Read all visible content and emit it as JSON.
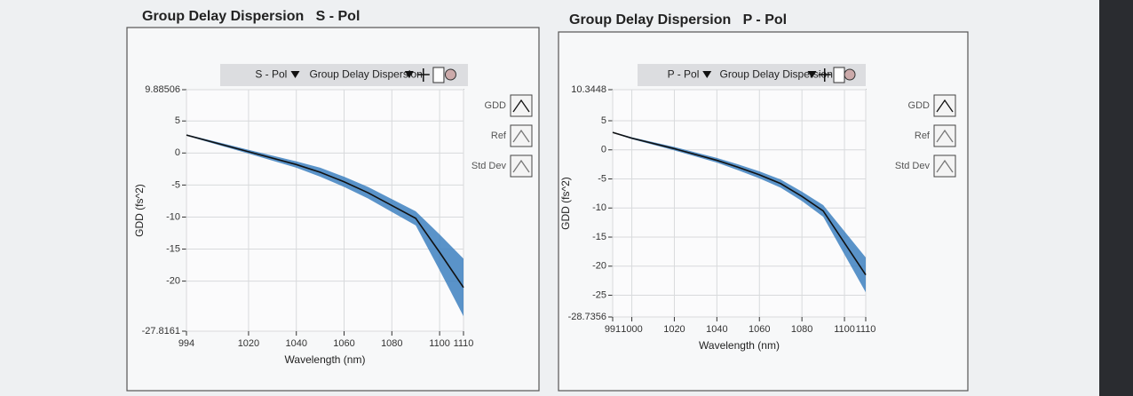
{
  "chart_data": [
    {
      "type": "line",
      "title": "Group Delay Dispersion   S - Pol",
      "toolbar": [
        "S - Pol",
        "Group Delay Dispersion"
      ],
      "x_label": "Wavelength (nm)",
      "y_label": "GDD (fs^2)",
      "x": [
        994,
        1020,
        1040,
        1050,
        1060,
        1070,
        1080,
        1090,
        1100,
        1110
      ],
      "series": [
        {
          "name": "GDD",
          "color": "#111111",
          "values": [
            2.8,
            0.2,
            -1.8,
            -3,
            -4.5,
            -6.2,
            -8.2,
            -10.2,
            -15.5,
            -21
          ]
        },
        {
          "name": "Ref",
          "color": "#666666",
          "values": [
            null,
            null,
            null,
            null,
            null,
            null,
            null,
            null,
            null,
            null
          ]
        },
        {
          "name": "Std Dev",
          "color": "#3d80c0",
          "values": [
            0.1,
            0.3,
            0.5,
            0.7,
            0.8,
            0.9,
            1.0,
            1.1,
            2.8,
            4.5
          ]
        }
      ],
      "xlim": [
        994,
        1110
      ],
      "xticks": [
        994,
        1020,
        1040,
        1060,
        1080,
        1100,
        1110
      ],
      "ylim": [
        -27.8161,
        9.88506
      ],
      "yticks": [
        9.88506,
        5,
        0,
        -5,
        -10,
        -15,
        -20,
        -27.8161
      ],
      "grid": true
    },
    {
      "type": "line",
      "title": "Group Delay Dispersion   P - Pol",
      "toolbar": [
        "P - Pol",
        "Group Delay Dispersion"
      ],
      "x_label": "Wavelength (nm)",
      "y_label": "GDD (fs^2)",
      "x": [
        991,
        1000,
        1020,
        1040,
        1050,
        1060,
        1070,
        1080,
        1090,
        1100,
        1110
      ],
      "series": [
        {
          "name": "GDD",
          "color": "#111111",
          "values": [
            3,
            2,
            0.2,
            -1.8,
            -3,
            -4.3,
            -5.8,
            -8,
            -10.5,
            -16,
            -21.5
          ]
        },
        {
          "name": "Ref",
          "color": "#666666",
          "values": [
            null,
            null,
            null,
            null,
            null,
            null,
            null,
            null,
            null,
            null,
            null
          ]
        },
        {
          "name": "Std Dev",
          "color": "#3d80c0",
          "values": [
            0.1,
            0.15,
            0.3,
            0.4,
            0.5,
            0.6,
            0.7,
            0.8,
            1.0,
            2.0,
            3.0
          ]
        }
      ],
      "xlim": [
        991,
        1110
      ],
      "xticks": [
        991,
        1000,
        1020,
        1040,
        1060,
        1080,
        1100,
        1110
      ],
      "ylim": [
        -28.7356,
        10.3448
      ],
      "yticks": [
        10.3448,
        5,
        0,
        -5,
        -10,
        -15,
        -20,
        -25,
        -28.7356
      ],
      "grid": true
    }
  ]
}
